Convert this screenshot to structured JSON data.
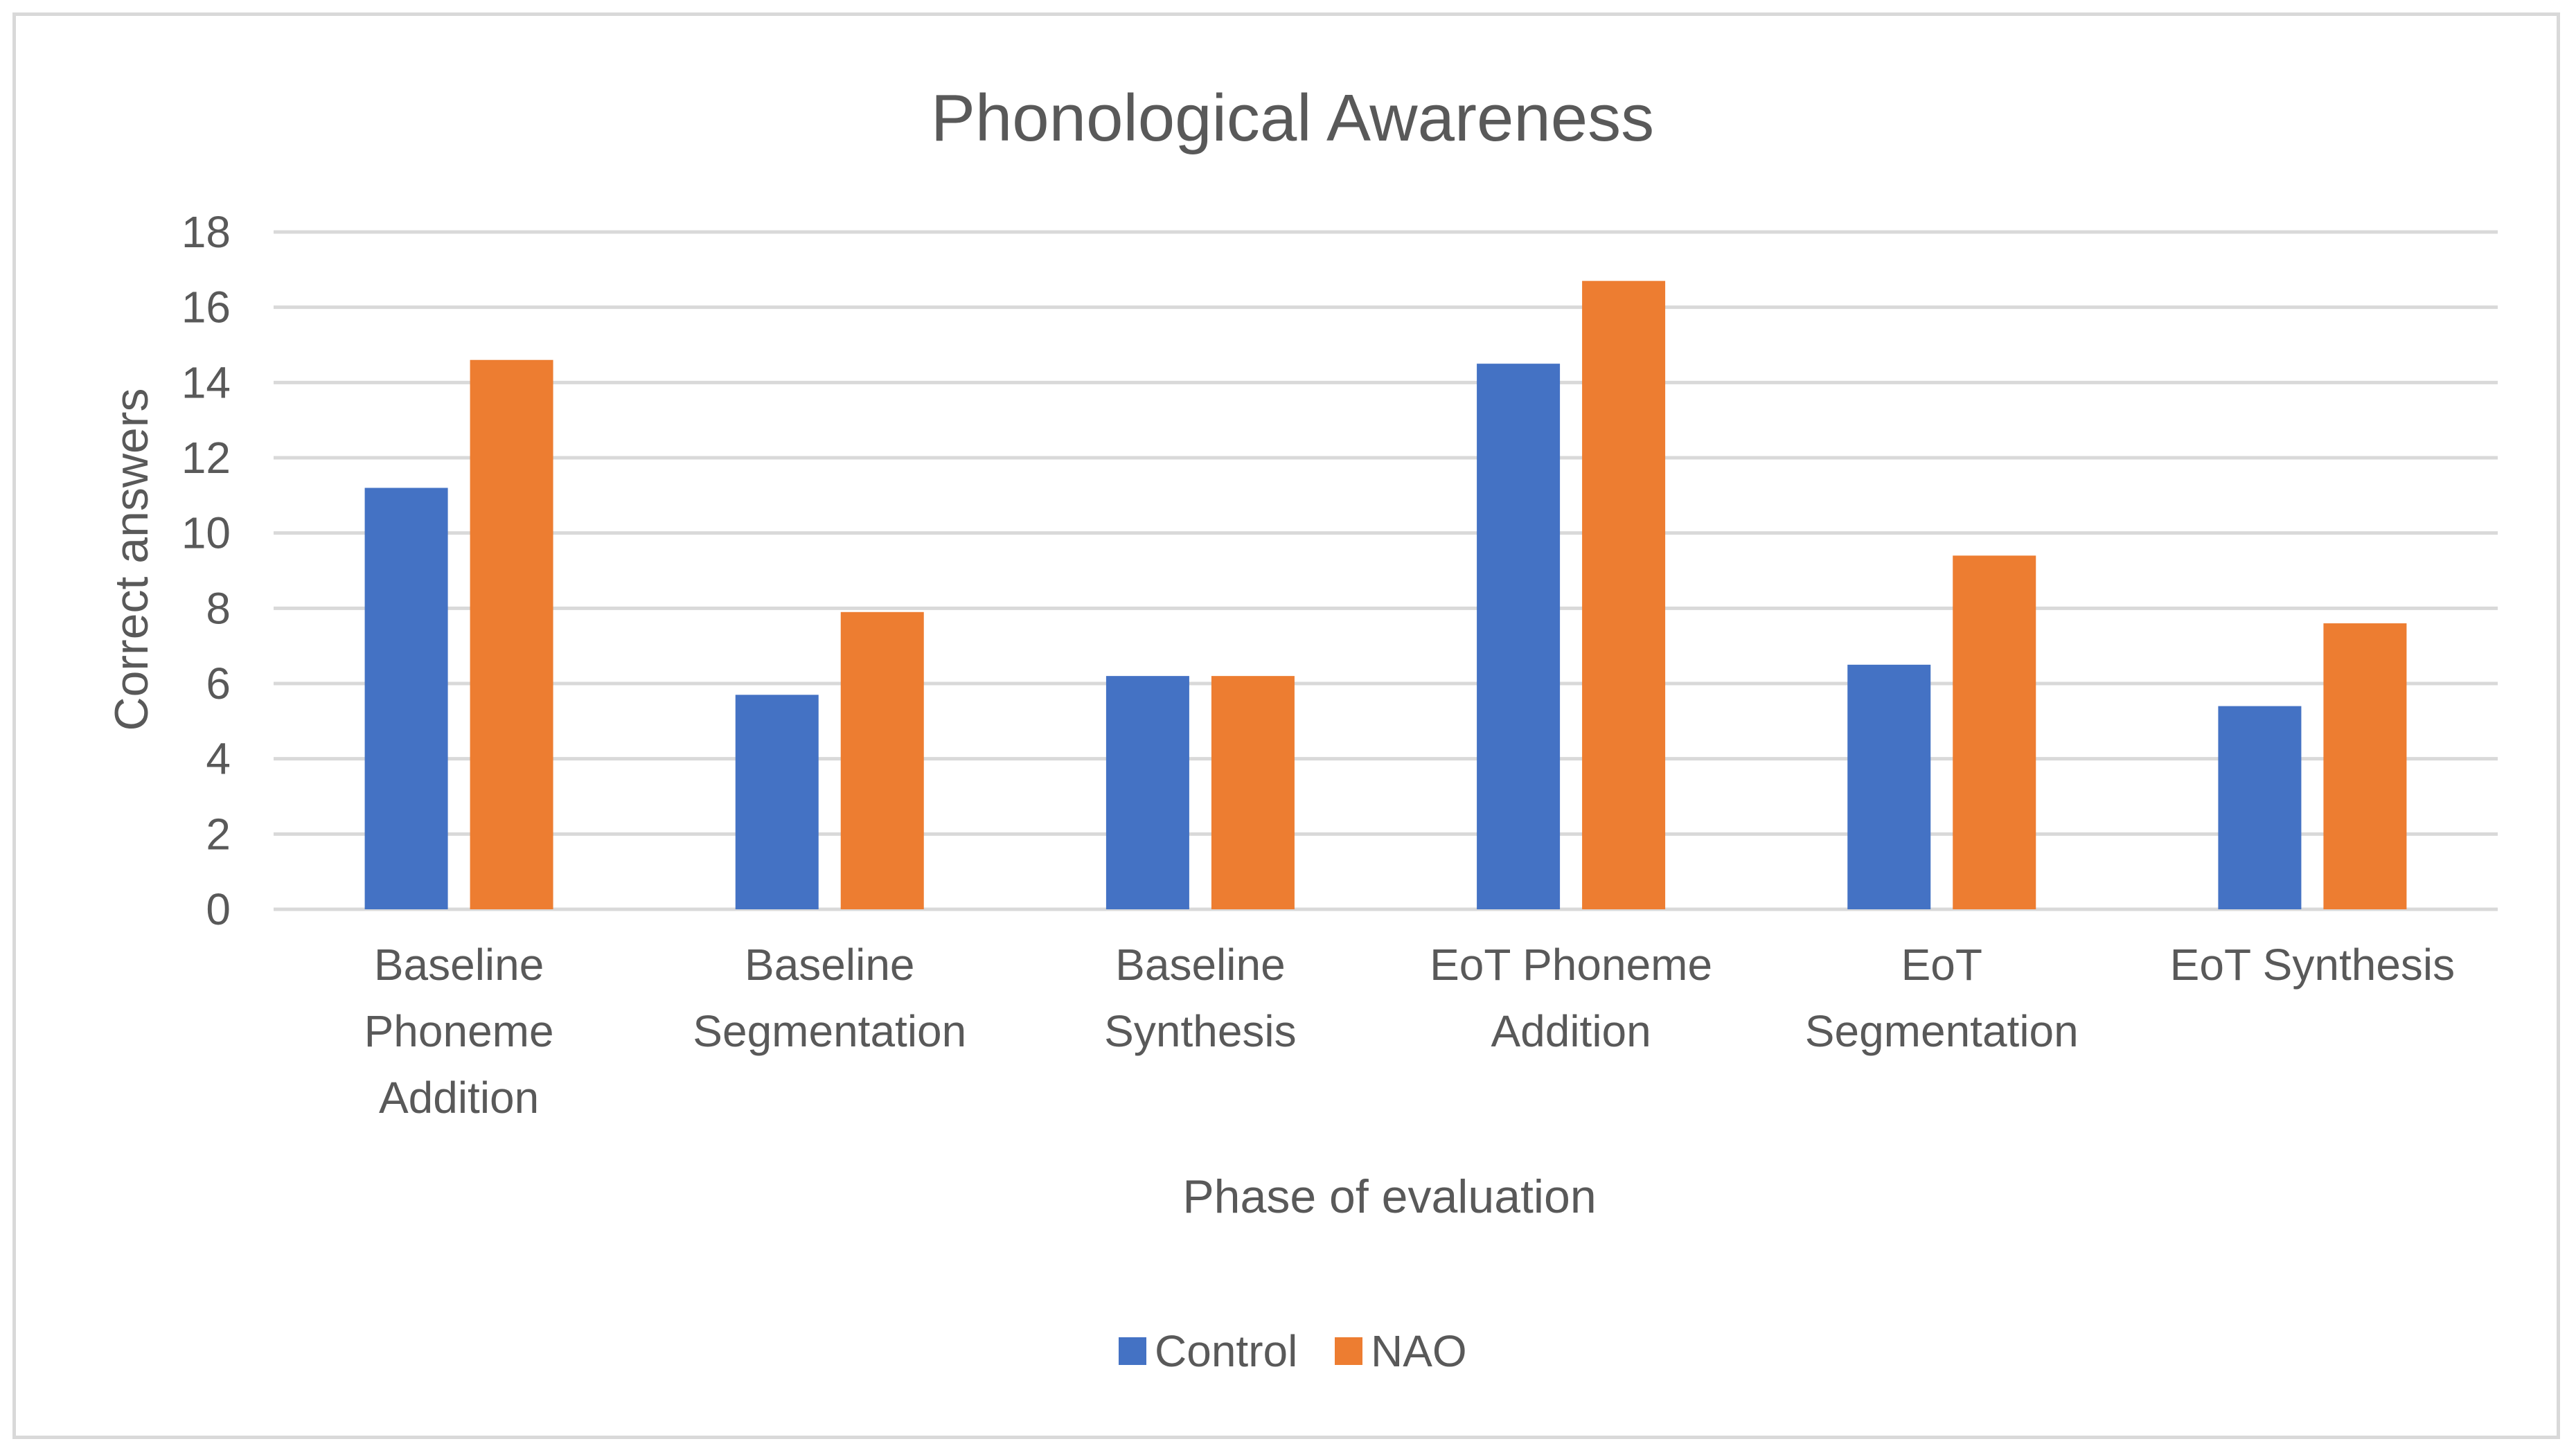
{
  "chart_data": {
    "type": "bar",
    "title": "Phonological Awareness",
    "xlabel": "Phase of evaluation",
    "ylabel": "Correct answers",
    "ylim": [
      0,
      18
    ],
    "ytick_step": 2,
    "yticks": [
      "0",
      "2",
      "4",
      "6",
      "8",
      "10",
      "12",
      "14",
      "16",
      "18"
    ],
    "grid": true,
    "legend_position": "bottom-center",
    "categories": [
      [
        "Baseline",
        "Phoneme",
        "Addition"
      ],
      [
        "Baseline",
        "Segmentation"
      ],
      [
        "Baseline",
        "Synthesis"
      ],
      [
        "EoT Phoneme",
        "Addition"
      ],
      [
        "EoT",
        "Segmentation"
      ],
      [
        "EoT Synthesis"
      ]
    ],
    "series": [
      {
        "name": "Control",
        "color": "#4472c4",
        "values": [
          11.2,
          5.7,
          6.2,
          14.5,
          6.5,
          5.4
        ]
      },
      {
        "name": "NAO",
        "color": "#ed7d31",
        "values": [
          14.6,
          7.9,
          6.2,
          16.7,
          9.4,
          7.6
        ]
      }
    ]
  }
}
